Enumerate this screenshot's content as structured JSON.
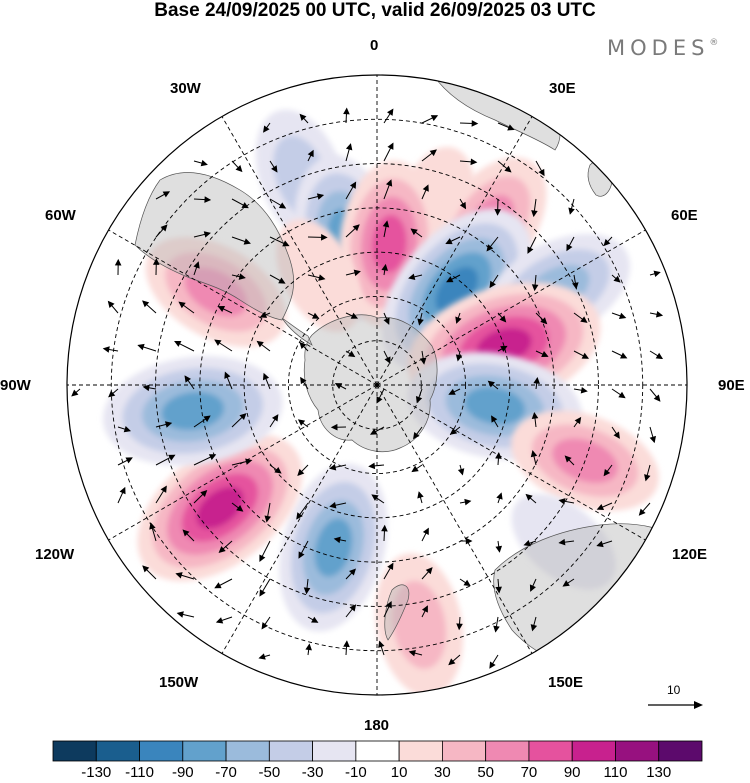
{
  "title": "Base 24/09/2025 00 UTC, valid 26/09/2025 03 UTC",
  "brand": "MODES",
  "brand_mark": "®",
  "longitude_labels": {
    "lon_0": "0",
    "lon_30e": "30E",
    "lon_60e": "60E",
    "lon_90e": "90E",
    "lon_120e": "120E",
    "lon_150e": "150E",
    "lon_180": "180",
    "lon_150w": "150W",
    "lon_120w": "120W",
    "lon_90w": "90W",
    "lon_60w": "60W",
    "lon_30w": "30W"
  },
  "colorbar": {
    "colors": [
      "#0d3a5e",
      "#1a5e8e",
      "#3a85bd",
      "#62a1cc",
      "#9bbbdc",
      "#c4cde7",
      "#e6e5f2",
      "#ffffff",
      "#fbdcd9",
      "#f6b7c4",
      "#ef89b2",
      "#e5529e",
      "#c8218e",
      "#97117f",
      "#5c0a6c"
    ],
    "labels": [
      "-130",
      "-110",
      "-90",
      "-70",
      "-50",
      "-30",
      "-10",
      "10",
      "30",
      "50",
      "70",
      "90",
      "110",
      "130"
    ]
  },
  "vector_reference": "10",
  "anomaly_blobs": [
    {
      "lon": 18,
      "lat": -48,
      "value": 25
    },
    {
      "lon": -20,
      "lat": -40,
      "value": -40
    },
    {
      "lon": -12,
      "lat": -56,
      "value": -70
    },
    {
      "lon": 5,
      "lat": -58,
      "value": 70
    },
    {
      "lon": 35,
      "lat": -46,
      "value": 55
    },
    {
      "lon": 40,
      "lat": -62,
      "value": -95
    },
    {
      "lon": 62,
      "lat": -44,
      "value": -60
    },
    {
      "lon": 73,
      "lat": -60,
      "value": 105
    },
    {
      "lon": 100,
      "lat": -63,
      "value": -80
    },
    {
      "lon": 110,
      "lat": -40,
      "value": 55
    },
    {
      "lon": 130,
      "lat": -35,
      "value": -20
    },
    {
      "lon": 170,
      "lat": -35,
      "value": 45
    },
    {
      "lon": -165,
      "lat": -52,
      "value": -75
    },
    {
      "lon": -128,
      "lat": -45,
      "value": 95
    },
    {
      "lon": -98,
      "lat": -48,
      "value": -85
    },
    {
      "lon": -60,
      "lat": -48,
      "value": 55
    },
    {
      "lon": -28,
      "lat": -62,
      "value": 20
    }
  ]
}
